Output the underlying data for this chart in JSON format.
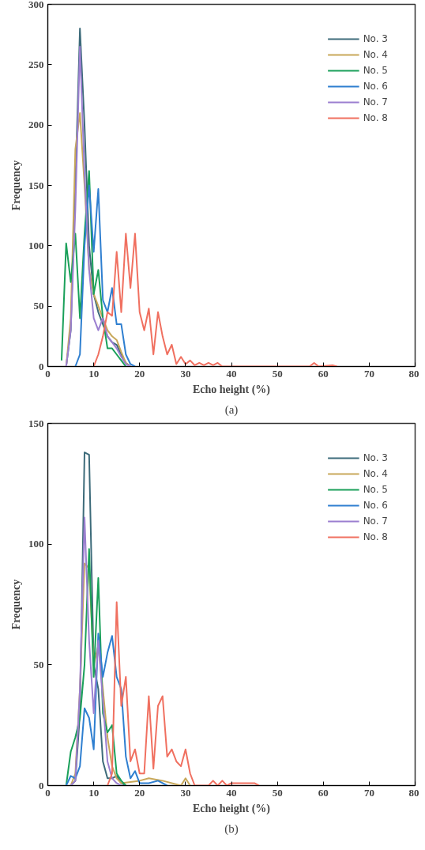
{
  "chart_data": [
    {
      "type": "line",
      "xlabel": "Echo height (%)",
      "ylabel": "Frequency",
      "annotations": [
        "(a)"
      ],
      "xlim": [
        0,
        80
      ],
      "ylim": [
        0,
        300
      ],
      "xticks": [
        0,
        10,
        20,
        30,
        40,
        50,
        60,
        70,
        80
      ],
      "yticks": [
        0,
        50,
        100,
        150,
        200,
        250,
        300
      ],
      "grid": false,
      "legend": "top right",
      "marker": "none",
      "line_style": "solid",
      "series": [
        {
          "name": "No. 3",
          "color": "#3d6b7a",
          "x": [
            4,
            5,
            6,
            7,
            8,
            9,
            10,
            11,
            12,
            13,
            14,
            15,
            16,
            17,
            18
          ],
          "values": [
            0,
            30,
            150,
            280,
            200,
            100,
            60,
            45,
            35,
            25,
            20,
            18,
            10,
            3,
            0
          ]
        },
        {
          "name": "No. 4",
          "color": "#c8a85a",
          "x": [
            4,
            5,
            6,
            7,
            8,
            9,
            10,
            11,
            12,
            13,
            14,
            15,
            16,
            17,
            18
          ],
          "values": [
            0,
            40,
            180,
            210,
            150,
            80,
            60,
            50,
            40,
            30,
            25,
            22,
            12,
            3,
            0
          ]
        },
        {
          "name": "No. 5",
          "color": "#1aa05a",
          "x": [
            3,
            4,
            5,
            6,
            7,
            8,
            9,
            10,
            11,
            12,
            13,
            14,
            15,
            16,
            17
          ],
          "values": [
            5,
            102,
            70,
            110,
            40,
            110,
            162,
            60,
            80,
            40,
            15,
            15,
            10,
            5,
            0
          ]
        },
        {
          "name": "No. 6",
          "color": "#2f7fd0",
          "x": [
            6,
            7,
            8,
            9,
            10,
            11,
            12,
            13,
            14,
            15,
            16,
            17,
            18,
            19
          ],
          "values": [
            0,
            10,
            100,
            150,
            95,
            147,
            55,
            45,
            65,
            35,
            35,
            10,
            2,
            0
          ]
        },
        {
          "name": "No. 7",
          "color": "#9b7fd0",
          "x": [
            4,
            5,
            6,
            7,
            8,
            9,
            10,
            11,
            12,
            13,
            14,
            15,
            16,
            17,
            18
          ],
          "values": [
            0,
            30,
            130,
            265,
            160,
            80,
            40,
            30,
            40,
            25,
            20,
            15,
            8,
            2,
            0
          ]
        },
        {
          "name": "No. 8",
          "color": "#f07060",
          "x": [
            10,
            11,
            12,
            13,
            14,
            15,
            16,
            17,
            18,
            19,
            20,
            21,
            22,
            23,
            24,
            25,
            26,
            27,
            28,
            29,
            30,
            31,
            32,
            33,
            34,
            35,
            36,
            37,
            38,
            57,
            58,
            59,
            62,
            63
          ],
          "values": [
            0,
            10,
            25,
            45,
            42,
            95,
            45,
            110,
            65,
            110,
            45,
            30,
            48,
            10,
            45,
            25,
            10,
            18,
            2,
            8,
            2,
            5,
            1,
            3,
            1,
            3,
            1,
            3,
            0,
            0,
            3,
            0,
            1,
            0
          ]
        }
      ]
    },
    {
      "type": "line",
      "xlabel": "Echo height (%)",
      "ylabel": "Frequency",
      "annotations": [
        "(b)"
      ],
      "xlim": [
        0,
        80
      ],
      "ylim": [
        0,
        150
      ],
      "xticks": [
        0,
        10,
        20,
        30,
        40,
        50,
        60,
        70,
        80
      ],
      "yticks": [
        0,
        50,
        100,
        150
      ],
      "grid": false,
      "legend": "top right",
      "marker": "none",
      "line_style": "solid",
      "series": [
        {
          "name": "No. 3",
          "color": "#3d6b7a",
          "x": [
            5,
            6,
            7,
            8,
            9,
            10,
            11,
            12,
            13,
            14,
            15,
            16,
            17
          ],
          "values": [
            0,
            2,
            30,
            138,
            137,
            50,
            40,
            10,
            3,
            3,
            4,
            1,
            0
          ]
        },
        {
          "name": "No. 4",
          "color": "#c8a85a",
          "x": [
            5,
            6,
            7,
            8,
            9,
            10,
            11,
            12,
            13,
            14,
            15,
            16,
            20,
            22,
            25,
            29,
            30,
            31
          ],
          "values": [
            0,
            5,
            40,
            92,
            90,
            50,
            58,
            40,
            20,
            8,
            3,
            1,
            2,
            3,
            2,
            0,
            3,
            0
          ]
        },
        {
          "name": "No. 5",
          "color": "#1aa05a",
          "x": [
            4,
            5,
            6,
            7,
            8,
            9,
            10,
            11,
            12,
            13,
            14,
            15,
            16,
            17
          ],
          "values": [
            0,
            14,
            20,
            28,
            50,
            98,
            45,
            86,
            30,
            22,
            25,
            5,
            2,
            0
          ]
        },
        {
          "name": "No. 6",
          "color": "#2f7fd0",
          "x": [
            4,
            5,
            6,
            7,
            8,
            9,
            10,
            11,
            12,
            13,
            14,
            15,
            16,
            17,
            18,
            19,
            20,
            22,
            24,
            26
          ],
          "values": [
            0,
            4,
            3,
            8,
            32,
            28,
            15,
            63,
            45,
            55,
            62,
            45,
            40,
            12,
            3,
            6,
            1,
            1,
            2,
            0
          ]
        },
        {
          "name": "No. 7",
          "color": "#9b7fd0",
          "x": [
            5,
            6,
            7,
            8,
            9,
            10,
            11,
            12,
            13,
            14,
            15,
            16
          ],
          "values": [
            0,
            2,
            40,
            111,
            60,
            30,
            60,
            35,
            10,
            3,
            1,
            0
          ]
        },
        {
          "name": "No. 8",
          "color": "#f07060",
          "x": [
            13,
            14,
            15,
            16,
            17,
            18,
            19,
            20,
            21,
            22,
            23,
            24,
            25,
            26,
            27,
            28,
            29,
            30,
            31,
            32,
            35,
            36,
            37,
            38,
            39,
            40,
            45,
            46
          ],
          "values": [
            0,
            5,
            76,
            33,
            45,
            10,
            15,
            5,
            5,
            37,
            7,
            33,
            37,
            12,
            15,
            10,
            8,
            15,
            5,
            0,
            0,
            2,
            0,
            2,
            0,
            1,
            1,
            0
          ]
        }
      ]
    }
  ]
}
